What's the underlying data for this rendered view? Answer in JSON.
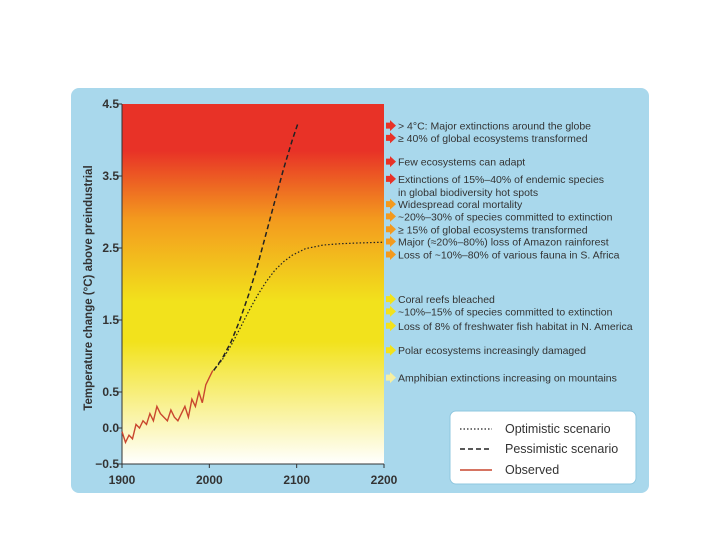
{
  "chart_data": {
    "type": "line",
    "ylabel": "Temperature change (°C) above preindustrial",
    "xlim": [
      1900,
      2200
    ],
    "ylim": [
      -0.5,
      4.5
    ],
    "x_ticks": [
      1900,
      2000,
      2100,
      2200
    ],
    "y_ticks": [
      {
        "value": 4.5,
        "label": "4.5"
      },
      {
        "value": 3.5,
        "label": "3.5"
      },
      {
        "value": 2.5,
        "label": "2.5"
      },
      {
        "value": 1.5,
        "label": "1.5"
      },
      {
        "value": 0.5,
        "label": "0.5"
      },
      {
        "value": 0.0,
        "label": "0.0"
      },
      {
        "value": -0.5,
        "label": "−0.5"
      }
    ],
    "grid": false,
    "legend_position": "bottom-right",
    "colors": {
      "frame": "#a9d8ec",
      "gradient_top": "#e83227",
      "gradient_mid_upper": "#f39a1e",
      "gradient_mid": "#f2e21c",
      "gradient_bottom": "#ffffff",
      "observed": "#c9462e",
      "scenario": "#222222",
      "arrow_high": "#e83227",
      "arrow_mid": "#f39a1e",
      "arrow_low": "#f2e21c",
      "arrow_faint": "#f6efa0"
    },
    "series": [
      {
        "name": "Optimistic scenario",
        "style": "dotted",
        "x": [
          2005,
          2015,
          2025,
          2035,
          2045,
          2055,
          2065,
          2075,
          2085,
          2095,
          2110,
          2130,
          2150,
          2170,
          2200
        ],
        "y": [
          0.8,
          0.95,
          1.15,
          1.38,
          1.62,
          1.84,
          2.03,
          2.19,
          2.31,
          2.4,
          2.49,
          2.54,
          2.56,
          2.57,
          2.58
        ]
      },
      {
        "name": "Pessimistic scenario",
        "style": "dashed",
        "x": [
          2005,
          2015,
          2025,
          2035,
          2045,
          2055,
          2065,
          2075,
          2085,
          2095,
          2102
        ],
        "y": [
          0.8,
          0.97,
          1.2,
          1.5,
          1.85,
          2.25,
          2.7,
          3.15,
          3.6,
          4.0,
          4.25
        ]
      },
      {
        "name": "Observed",
        "style": "solid",
        "x": [
          1900,
          1904,
          1908,
          1912,
          1916,
          1920,
          1924,
          1928,
          1932,
          1936,
          1940,
          1944,
          1948,
          1952,
          1956,
          1960,
          1964,
          1968,
          1972,
          1976,
          1980,
          1984,
          1988,
          1992,
          1996,
          2000,
          2004
        ],
        "y": [
          -0.05,
          -0.2,
          -0.1,
          -0.15,
          0.05,
          0.0,
          0.1,
          0.05,
          0.2,
          0.1,
          0.3,
          0.2,
          0.15,
          0.1,
          0.25,
          0.15,
          0.1,
          0.2,
          0.3,
          0.15,
          0.4,
          0.3,
          0.5,
          0.35,
          0.6,
          0.7,
          0.8
        ]
      }
    ],
    "impacts": [
      {
        "y": 4.2,
        "level": "high",
        "label": "> 4°C: Major extinctions around the globe"
      },
      {
        "y": 4.03,
        "level": "high",
        "label": "≥ 40% of global ecosystems transformed"
      },
      {
        "y": 3.7,
        "level": "high",
        "label": "Few ecosystems can adapt"
      },
      {
        "y": 3.46,
        "level": "high",
        "label": "Extinctions of 15%–40% of endemic species"
      },
      {
        "y": 3.28,
        "level": "none",
        "label": "in global biodiversity hot spots"
      },
      {
        "y": 3.11,
        "level": "mid",
        "label": "Widespread coral mortality"
      },
      {
        "y": 2.94,
        "level": "mid",
        "label": "~20%–30% of species committed to extinction"
      },
      {
        "y": 2.76,
        "level": "mid",
        "label": "≥ 15% of global ecosystems transformed"
      },
      {
        "y": 2.59,
        "level": "mid",
        "label": "Major (≈20%–80%) loss of Amazon rainforest"
      },
      {
        "y": 2.41,
        "level": "mid",
        "label": "Loss of ~10%–80% of various fauna in S. Africa"
      },
      {
        "y": 1.79,
        "level": "low",
        "label": "Coral reefs bleached"
      },
      {
        "y": 1.62,
        "level": "low",
        "label": "~10%–15% of species committed to extinction"
      },
      {
        "y": 1.42,
        "level": "low",
        "label": "Loss of 8% of freshwater fish habitat in N. America"
      },
      {
        "y": 1.08,
        "level": "low",
        "label": "Polar ecosystems increasingly damaged"
      },
      {
        "y": 0.7,
        "level": "faint",
        "label": "Amphibian extinctions increasing on mountains"
      }
    ]
  }
}
